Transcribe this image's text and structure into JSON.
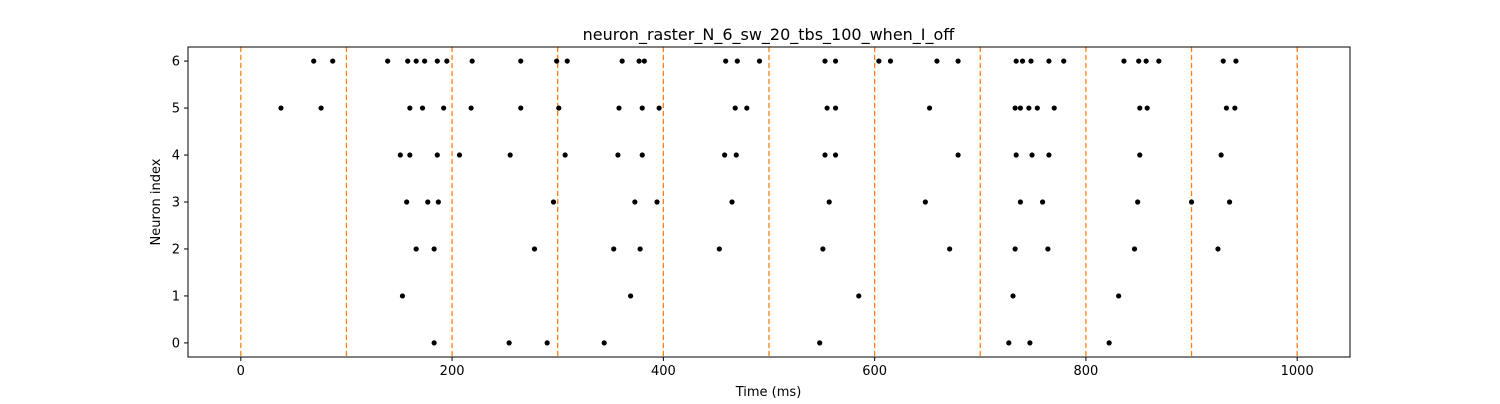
{
  "chart_data": {
    "type": "scatter",
    "title": "neuron_raster_N_6_sw_20_tbs_100_when_I_off",
    "xlabel": "Time (ms)",
    "ylabel": "Neuron index",
    "xlim": [
      -50,
      1050
    ],
    "ylim": [
      -0.3,
      6.3
    ],
    "xticks": [
      0,
      200,
      400,
      600,
      800,
      1000
    ],
    "xtick_labels": [
      "0",
      "200",
      "400",
      "600",
      "800",
      "1000"
    ],
    "yticks": [
      0,
      1,
      2,
      3,
      4,
      5,
      6
    ],
    "ytick_labels": [
      "0",
      "1",
      "2",
      "3",
      "4",
      "5",
      "6"
    ],
    "grid": false,
    "marker_color": "#000000",
    "vline_color": "#ff7f0e",
    "vlines": [
      0,
      100,
      200,
      300,
      400,
      500,
      600,
      700,
      800,
      900,
      1000
    ],
    "series": [
      {
        "neuron": 0,
        "x": [
          183,
          254,
          290,
          344,
          548,
          727,
          747,
          822
        ]
      },
      {
        "neuron": 1,
        "x": [
          153,
          369,
          585,
          731,
          831
        ]
      },
      {
        "neuron": 2,
        "x": [
          166,
          183,
          278,
          353,
          378,
          453,
          551,
          671,
          733,
          764,
          846,
          925
        ]
      },
      {
        "neuron": 3,
        "x": [
          157,
          177,
          187,
          296,
          373,
          394,
          465,
          557,
          648,
          738,
          759,
          849,
          900,
          936
        ]
      },
      {
        "neuron": 4,
        "x": [
          151,
          160,
          186,
          207,
          255,
          307,
          357,
          380,
          458,
          469,
          553,
          563,
          679,
          734,
          749,
          765,
          851,
          928
        ]
      },
      {
        "neuron": 5,
        "x": [
          38,
          76,
          160,
          172,
          192,
          218,
          265,
          301,
          358,
          380,
          396,
          468,
          479,
          555,
          563,
          652,
          733,
          738,
          746,
          754,
          770,
          851,
          858,
          933,
          941
        ]
      },
      {
        "neuron": 6,
        "x": [
          69,
          87,
          139,
          158,
          166,
          174,
          186,
          195,
          219,
          265,
          299,
          309,
          361,
          377,
          382,
          459,
          470,
          491,
          553,
          563,
          604,
          615,
          659,
          679,
          734,
          740,
          748,
          765,
          779,
          836,
          850,
          857,
          869,
          930,
          942
        ]
      }
    ]
  }
}
